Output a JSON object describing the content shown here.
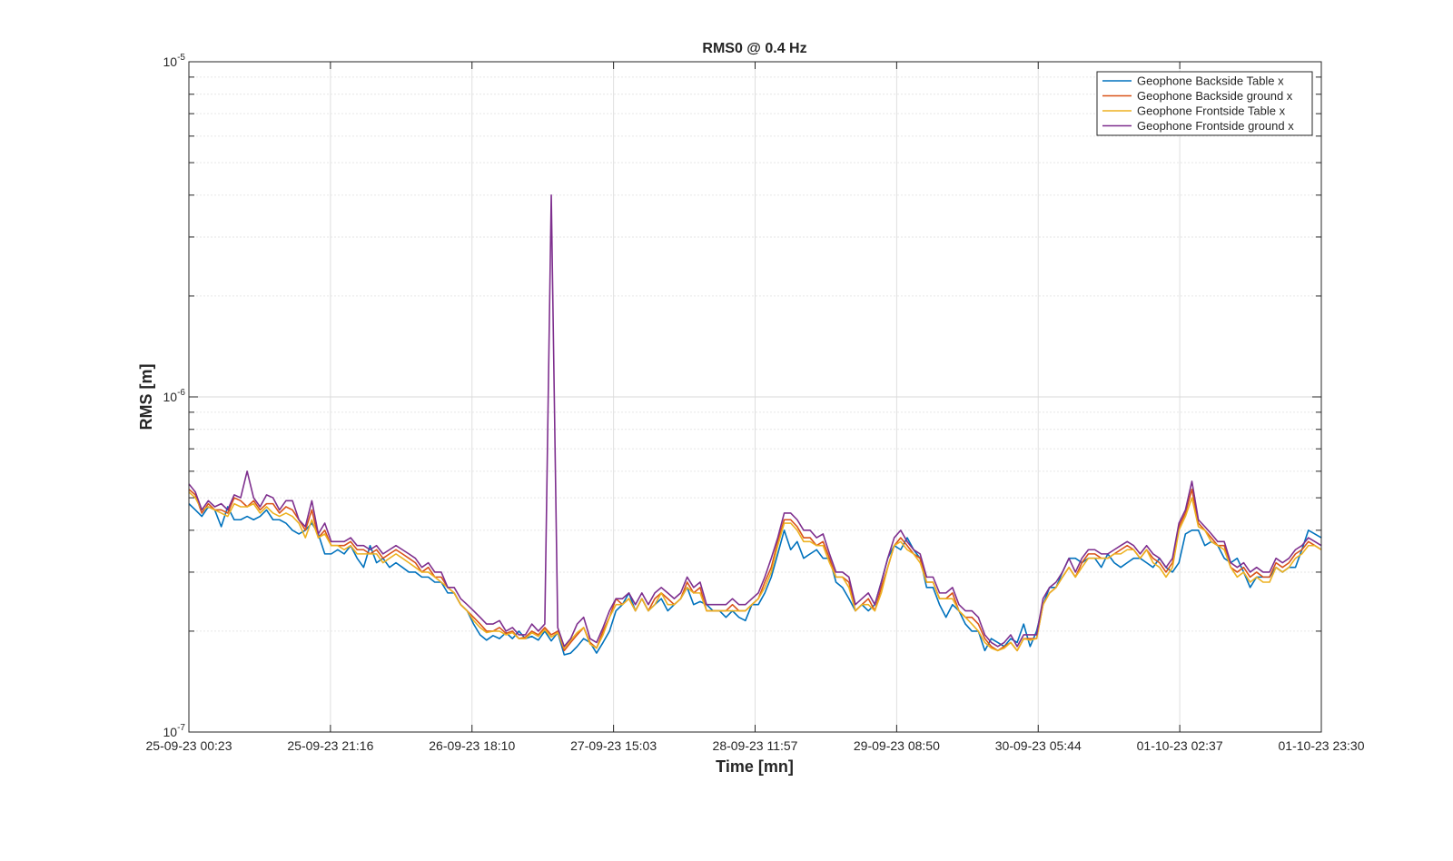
{
  "chart_data": {
    "type": "line",
    "title": "RMS0 @ 0.4 Hz",
    "xlabel": "Time [mn]",
    "ylabel": "RMS [m]",
    "yscale": "log",
    "ylim": [
      1e-07,
      1e-05
    ],
    "x_ticks": [
      "25-09-23 00:23",
      "25-09-23 21:16",
      "26-09-23 18:10",
      "27-09-23 15:03",
      "28-09-23 11:57",
      "29-09-23 08:50",
      "30-09-23 05:44",
      "01-10-23 02:37",
      "01-10-23 23:30"
    ],
    "y_ticks": [
      {
        "value": 1e-05,
        "base": "10",
        "exp": "-5"
      },
      {
        "value": 1e-06,
        "base": "10",
        "exp": "-6"
      },
      {
        "value": 1e-07,
        "base": "10",
        "exp": "-7"
      }
    ],
    "grid": true,
    "legend_position": "top-right",
    "colors": [
      "#0072BD",
      "#D95319",
      "#EDB120",
      "#7E2F8E"
    ],
    "series": [
      {
        "name": "Geophone Backside Table x",
        "values": [
          4.8,
          4.6,
          4.4,
          4.7,
          4.6,
          4.1,
          4.7,
          4.3,
          4.3,
          4.4,
          4.3,
          4.4,
          4.6,
          4.3,
          4.3,
          4.2,
          4.0,
          3.9,
          4.0,
          4.2,
          3.9,
          3.4,
          3.4,
          3.5,
          3.4,
          3.6,
          3.3,
          3.1,
          3.6,
          3.2,
          3.3,
          3.1,
          3.2,
          3.1,
          3.0,
          3.0,
          2.9,
          2.9,
          2.8,
          2.8,
          2.6,
          2.6,
          2.4,
          2.3,
          2.1,
          1.95,
          1.88,
          1.94,
          1.9,
          1.98,
          1.9,
          2.0,
          1.9,
          1.93,
          1.88,
          2.0,
          1.87,
          1.98,
          1.7,
          1.72,
          1.8,
          1.9,
          1.85,
          1.72,
          1.85,
          2.0,
          2.3,
          2.4,
          2.6,
          2.3,
          2.5,
          2.3,
          2.4,
          2.5,
          2.3,
          2.4,
          2.5,
          2.7,
          2.4,
          2.45,
          2.4,
          2.3,
          2.3,
          2.2,
          2.3,
          2.2,
          2.15,
          2.4,
          2.4,
          2.6,
          2.9,
          3.4,
          4.0,
          3.5,
          3.7,
          3.3,
          3.4,
          3.5,
          3.3,
          3.3,
          2.8,
          2.7,
          2.5,
          2.3,
          2.4,
          2.3,
          2.4,
          2.8,
          3.3,
          3.6,
          3.5,
          3.8,
          3.5,
          3.3,
          2.7,
          2.7,
          2.4,
          2.2,
          2.4,
          2.3,
          2.1,
          2.0,
          2.0,
          1.75,
          1.9,
          1.85,
          1.8,
          1.9,
          1.85,
          2.1,
          1.8,
          2.0,
          2.4,
          2.7,
          2.7,
          3.0,
          3.3,
          3.3,
          3.2,
          3.3,
          3.3,
          3.1,
          3.4,
          3.2,
          3.1,
          3.2,
          3.3,
          3.3,
          3.2,
          3.1,
          3.3,
          3.1,
          3.0,
          3.2,
          3.9,
          4.0,
          4.0,
          3.6,
          3.7,
          3.6,
          3.3,
          3.2,
          3.3,
          3.0,
          2.7,
          2.9,
          2.9,
          2.9,
          3.1,
          3.0,
          3.1,
          3.1,
          3.5,
          4.0,
          3.9,
          3.8
        ]
      },
      {
        "name": "Geophone Backside ground x",
        "values": [
          5.3,
          5.1,
          4.5,
          4.8,
          4.6,
          4.6,
          4.5,
          5.0,
          4.9,
          4.7,
          4.9,
          4.6,
          4.8,
          4.8,
          4.5,
          4.7,
          4.6,
          4.3,
          4.0,
          4.6,
          3.8,
          4.0,
          3.6,
          3.6,
          3.6,
          3.7,
          3.5,
          3.5,
          3.4,
          3.5,
          3.3,
          3.4,
          3.5,
          3.4,
          3.3,
          3.2,
          3.0,
          3.1,
          2.9,
          2.9,
          2.7,
          2.6,
          2.4,
          2.3,
          2.2,
          2.1,
          2.0,
          2.0,
          2.05,
          1.97,
          2.0,
          1.9,
          1.92,
          2.0,
          1.95,
          2.05,
          1.95,
          2.0,
          1.75,
          1.85,
          1.95,
          2.05,
          1.85,
          1.78,
          2.0,
          2.2,
          2.5,
          2.4,
          2.5,
          2.3,
          2.5,
          2.3,
          2.5,
          2.6,
          2.5,
          2.4,
          2.5,
          2.8,
          2.6,
          2.7,
          2.3,
          2.3,
          2.3,
          2.3,
          2.4,
          2.3,
          2.3,
          2.4,
          2.5,
          2.8,
          3.1,
          3.7,
          4.3,
          4.3,
          4.1,
          3.8,
          3.8,
          3.6,
          3.7,
          3.3,
          2.9,
          2.9,
          2.8,
          2.3,
          2.4,
          2.5,
          2.3,
          2.7,
          3.1,
          3.6,
          3.8,
          3.6,
          3.4,
          3.3,
          2.8,
          2.8,
          2.5,
          2.5,
          2.6,
          2.3,
          2.2,
          2.2,
          2.1,
          1.9,
          1.8,
          1.75,
          1.8,
          1.85,
          1.75,
          1.9,
          1.9,
          1.9,
          2.4,
          2.6,
          2.7,
          2.9,
          3.1,
          2.9,
          3.2,
          3.4,
          3.4,
          3.3,
          3.3,
          3.4,
          3.5,
          3.6,
          3.5,
          3.3,
          3.5,
          3.3,
          3.2,
          3.0,
          3.2,
          4.1,
          4.5,
          5.3,
          4.2,
          4.0,
          3.8,
          3.6,
          3.6,
          3.1,
          3.0,
          3.1,
          2.9,
          3.0,
          2.9,
          2.9,
          3.2,
          3.1,
          3.2,
          3.4,
          3.5,
          3.7,
          3.6,
          3.5
        ]
      },
      {
        "name": "Geophone Frontside Table x",
        "values": [
          5.2,
          5.0,
          4.6,
          4.7,
          4.6,
          4.5,
          4.4,
          4.8,
          4.7,
          4.7,
          4.8,
          4.5,
          4.7,
          4.5,
          4.4,
          4.5,
          4.4,
          4.2,
          3.8,
          4.3,
          3.8,
          3.9,
          3.6,
          3.6,
          3.5,
          3.6,
          3.4,
          3.4,
          3.4,
          3.4,
          3.2,
          3.3,
          3.4,
          3.3,
          3.2,
          3.1,
          3.0,
          3.0,
          2.9,
          2.8,
          2.7,
          2.6,
          2.4,
          2.3,
          2.15,
          2.05,
          1.98,
          2.0,
          2.0,
          1.95,
          1.98,
          1.9,
          1.9,
          1.98,
          1.93,
          2.02,
          1.92,
          1.98,
          1.78,
          1.88,
          1.98,
          2.05,
          1.83,
          1.78,
          1.95,
          2.2,
          2.4,
          2.4,
          2.5,
          2.3,
          2.5,
          2.3,
          2.4,
          2.6,
          2.4,
          2.4,
          2.5,
          2.7,
          2.6,
          2.6,
          2.3,
          2.3,
          2.3,
          2.3,
          2.3,
          2.3,
          2.3,
          2.4,
          2.5,
          2.7,
          3.0,
          3.6,
          4.2,
          4.2,
          4.0,
          3.7,
          3.7,
          3.6,
          3.6,
          3.2,
          2.9,
          2.9,
          2.7,
          2.3,
          2.4,
          2.4,
          2.3,
          2.6,
          3.1,
          3.6,
          3.7,
          3.5,
          3.4,
          3.2,
          2.8,
          2.8,
          2.5,
          2.5,
          2.5,
          2.3,
          2.2,
          2.1,
          2.0,
          1.85,
          1.78,
          1.75,
          1.78,
          1.85,
          1.75,
          1.9,
          1.88,
          1.9,
          2.4,
          2.6,
          2.7,
          2.9,
          3.1,
          2.9,
          3.1,
          3.3,
          3.3,
          3.3,
          3.3,
          3.4,
          3.4,
          3.5,
          3.5,
          3.3,
          3.5,
          3.2,
          3.1,
          2.9,
          3.1,
          4.0,
          4.4,
          5.0,
          4.1,
          4.0,
          3.7,
          3.6,
          3.5,
          3.1,
          2.9,
          3.0,
          2.8,
          2.9,
          2.8,
          2.8,
          3.1,
          3.0,
          3.1,
          3.3,
          3.4,
          3.6,
          3.6,
          3.5
        ]
      },
      {
        "name": "Geophone Frontside ground x",
        "values": [
          5.5,
          5.2,
          4.6,
          4.9,
          4.7,
          4.8,
          4.6,
          5.1,
          5.0,
          6.0,
          5.0,
          4.7,
          5.1,
          5.0,
          4.6,
          4.9,
          4.9,
          4.3,
          4.1,
          4.9,
          3.9,
          4.2,
          3.7,
          3.7,
          3.7,
          3.8,
          3.6,
          3.6,
          3.5,
          3.6,
          3.4,
          3.5,
          3.6,
          3.5,
          3.4,
          3.3,
          3.1,
          3.2,
          3.0,
          3.0,
          2.7,
          2.7,
          2.5,
          2.4,
          2.3,
          2.2,
          2.1,
          2.1,
          2.15,
          2.0,
          2.05,
          1.95,
          1.95,
          2.1,
          2.0,
          2.1,
          40.0,
          2.05,
          1.8,
          1.9,
          2.1,
          2.2,
          1.9,
          1.85,
          2.05,
          2.3,
          2.5,
          2.5,
          2.6,
          2.4,
          2.6,
          2.4,
          2.6,
          2.7,
          2.6,
          2.5,
          2.6,
          2.9,
          2.7,
          2.8,
          2.4,
          2.4,
          2.4,
          2.4,
          2.5,
          2.4,
          2.4,
          2.5,
          2.6,
          2.9,
          3.3,
          3.8,
          4.5,
          4.5,
          4.3,
          4.0,
          4.0,
          3.8,
          3.9,
          3.4,
          3.0,
          3.0,
          2.9,
          2.4,
          2.5,
          2.6,
          2.4,
          2.8,
          3.3,
          3.8,
          4.0,
          3.7,
          3.5,
          3.4,
          2.9,
          2.9,
          2.6,
          2.6,
          2.7,
          2.4,
          2.3,
          2.3,
          2.2,
          1.95,
          1.85,
          1.8,
          1.85,
          1.95,
          1.8,
          1.95,
          1.95,
          1.95,
          2.5,
          2.7,
          2.8,
          3.0,
          3.3,
          3.0,
          3.3,
          3.5,
          3.5,
          3.4,
          3.4,
          3.5,
          3.6,
          3.7,
          3.6,
          3.4,
          3.6,
          3.4,
          3.3,
          3.1,
          3.3,
          4.2,
          4.6,
          5.6,
          4.3,
          4.1,
          3.9,
          3.7,
          3.7,
          3.2,
          3.1,
          3.2,
          3.0,
          3.1,
          3.0,
          3.0,
          3.3,
          3.2,
          3.3,
          3.5,
          3.6,
          3.8,
          3.7,
          3.6
        ]
      }
    ]
  }
}
